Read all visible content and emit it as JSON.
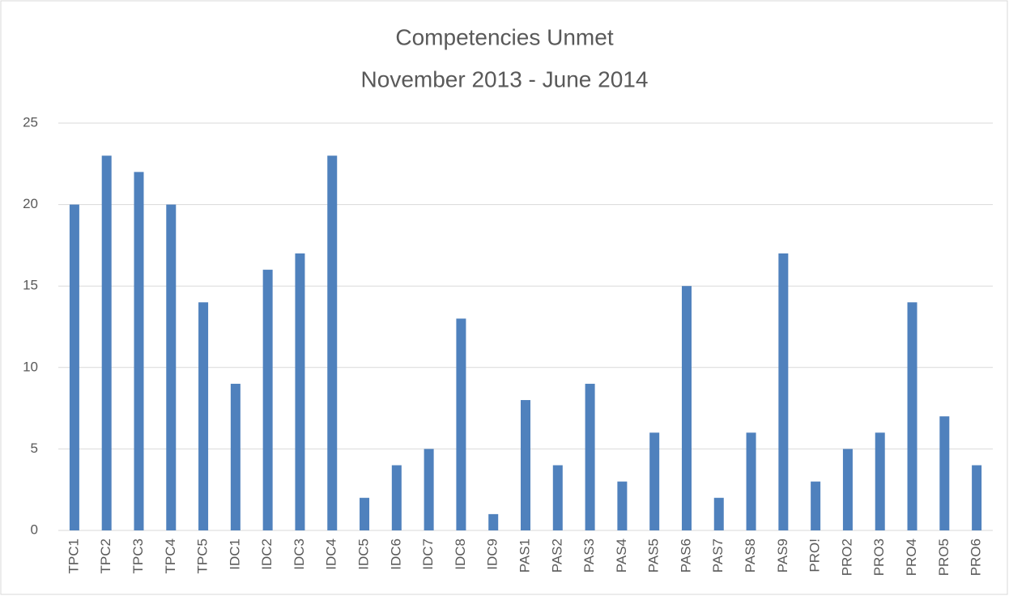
{
  "chart_data": {
    "type": "bar",
    "title": "Competencies Unmet",
    "subtitle": "November 2013 - June 2014",
    "categories": [
      "TPC1",
      "TPC2",
      "TPC3",
      "TPC4",
      "TPC5",
      "IDC1",
      "IDC2",
      "IDC3",
      "IDC4",
      "IDC5",
      "IDC6",
      "IDC7",
      "IDC8",
      "IDC9",
      "PAS1",
      "PAS2",
      "PAS3",
      "PAS4",
      "PAS5",
      "PAS6",
      "PAS7",
      "PAS8",
      "PAS9",
      "PRO!",
      "PRO2",
      "PRO3",
      "PRO4",
      "PRO5",
      "PRO6"
    ],
    "values": [
      20,
      23,
      22,
      20,
      14,
      9,
      16,
      17,
      23,
      2,
      4,
      5,
      13,
      1,
      8,
      4,
      9,
      3,
      6,
      15,
      2,
      6,
      17,
      3,
      5,
      6,
      14,
      7,
      4
    ],
    "color": "#4f81bd",
    "ylim": [
      0,
      25
    ],
    "yticks": [
      0,
      5,
      10,
      15,
      20,
      25
    ],
    "grid": true
  }
}
